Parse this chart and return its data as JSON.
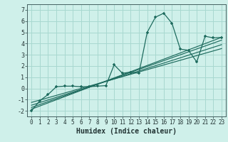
{
  "xlabel": "Humidex (Indice chaleur)",
  "xlim": [
    -0.5,
    23.5
  ],
  "ylim": [
    -2.5,
    7.5
  ],
  "xticks": [
    0,
    1,
    2,
    3,
    4,
    5,
    6,
    7,
    8,
    9,
    10,
    11,
    12,
    13,
    14,
    15,
    16,
    17,
    18,
    19,
    20,
    21,
    22,
    23
  ],
  "yticks": [
    -2,
    -1,
    0,
    1,
    2,
    3,
    4,
    5,
    6,
    7
  ],
  "bg_color": "#cff0ea",
  "grid_color": "#a8d8d0",
  "line_color": "#1e6b5e",
  "data_x": [
    0,
    1,
    2,
    3,
    4,
    5,
    6,
    7,
    8,
    9,
    10,
    11,
    12,
    13,
    14,
    15,
    16,
    17,
    18,
    19,
    20,
    21,
    22,
    23
  ],
  "data_y": [
    -2.0,
    -1.1,
    -0.55,
    0.15,
    0.2,
    0.2,
    0.15,
    0.15,
    0.2,
    0.25,
    2.1,
    1.35,
    1.45,
    1.35,
    5.0,
    6.35,
    6.7,
    5.8,
    3.5,
    3.4,
    2.35,
    4.65,
    4.5,
    4.55
  ],
  "reg_lines": [
    {
      "x0": 0,
      "y0": -1.85,
      "x1": 23,
      "y1": 4.55
    },
    {
      "x0": 0,
      "y0": -1.7,
      "x1": 23,
      "y1": 4.3
    },
    {
      "x0": 0,
      "y0": -1.5,
      "x1": 23,
      "y1": 3.9
    },
    {
      "x0": 0,
      "y0": -1.25,
      "x1": 23,
      "y1": 3.55
    }
  ],
  "tick_fontsize": 5.5,
  "xlabel_fontsize": 7.0
}
